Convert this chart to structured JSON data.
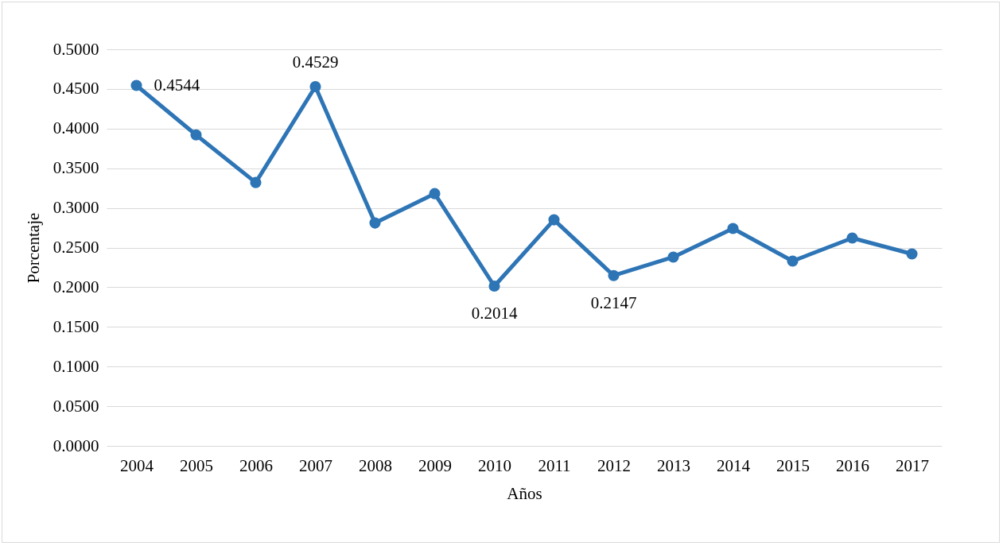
{
  "chart_data": {
    "type": "line",
    "xlabel": "Años",
    "ylabel": "Porcentaje",
    "categories": [
      "2004",
      "2005",
      "2006",
      "2007",
      "2008",
      "2009",
      "2010",
      "2011",
      "2012",
      "2013",
      "2014",
      "2015",
      "2016",
      "2017"
    ],
    "series": [
      {
        "color": "#2e75b6",
        "values": [
          0.4544,
          0.392,
          0.332,
          0.4529,
          0.281,
          0.318,
          0.2014,
          0.285,
          0.2147,
          0.238,
          0.274,
          0.233,
          0.262,
          0.242
        ],
        "value_labels": [
          "0.4544",
          null,
          null,
          "0.4529",
          null,
          null,
          "0.2014",
          null,
          "0.2147",
          null,
          null,
          null,
          null,
          null
        ]
      }
    ],
    "ylim": [
      0,
      0.5
    ],
    "yticks": [
      {
        "value": 0,
        "label": "0.0000"
      },
      {
        "value": 0.05,
        "label": "0.0500"
      },
      {
        "value": 0.1,
        "label": "0.1000"
      },
      {
        "value": 0.15,
        "label": "0.1500"
      },
      {
        "value": 0.2,
        "label": "0.2000"
      },
      {
        "value": 0.25,
        "label": "0.2500"
      },
      {
        "value": 0.3,
        "label": "0.3000"
      },
      {
        "value": 0.35,
        "label": "0.3500"
      },
      {
        "value": 0.4,
        "label": "0.4000"
      },
      {
        "value": 0.45,
        "label": "0.4500"
      },
      {
        "value": 0.5,
        "label": "0.5000"
      }
    ],
    "grid": "y",
    "marker": "circle",
    "line_style": "solid"
  }
}
